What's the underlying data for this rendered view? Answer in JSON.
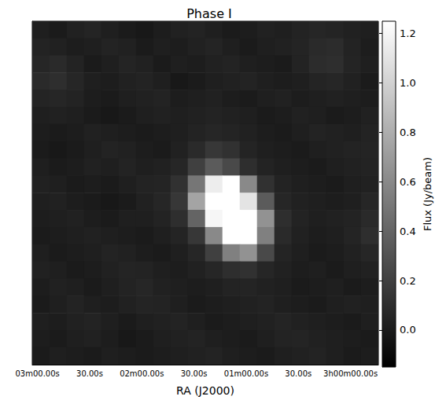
{
  "chart_data": {
    "type": "heatmap",
    "title": "Phase I",
    "x_label": "RA (J2000)",
    "xlim": [
      183,
      -16
    ],
    "xticks": [
      {
        "value": 180,
        "label": "03m00.00s"
      },
      {
        "value": 150,
        "label": "30.00s"
      },
      {
        "value": 120,
        "label": "02m00.00s"
      },
      {
        "value": 90,
        "label": "30.00s"
      },
      {
        "value": 60,
        "label": "01m00.00s"
      },
      {
        "value": 30,
        "label": "30.00s"
      },
      {
        "value": 0,
        "label": "3h00m00.00s"
      }
    ],
    "ylim": [
      0,
      20
    ],
    "yticks": [
      2,
      4,
      6,
      8,
      10,
      12,
      14,
      16,
      18
    ],
    "tick_labels": "x",
    "grid": false,
    "cells": [
      [
        0.02,
        0.0,
        0.03,
        0.05,
        0.02,
        0.0,
        -0.02,
        0.01,
        0.03,
        0.04,
        0.02,
        0.0,
        0.01,
        0.03,
        0.02,
        0.04,
        0.06,
        0.05,
        0.03,
        0.02
      ],
      [
        0.04,
        0.03,
        0.01,
        0.02,
        0.04,
        0.03,
        0.0,
        0.02,
        0.01,
        0.03,
        0.05,
        0.02,
        0.0,
        0.02,
        0.03,
        0.05,
        0.08,
        0.09,
        0.04,
        0.01
      ],
      [
        0.06,
        0.08,
        0.04,
        0.0,
        0.02,
        0.05,
        0.03,
        0.0,
        0.02,
        0.01,
        0.03,
        0.04,
        0.02,
        0.01,
        0.0,
        0.04,
        0.09,
        0.1,
        0.05,
        0.02
      ],
      [
        0.08,
        0.1,
        0.06,
        0.02,
        0.01,
        0.03,
        0.04,
        0.02,
        -0.02,
        0.0,
        0.02,
        0.03,
        0.04,
        0.02,
        0.01,
        0.02,
        0.05,
        0.06,
        0.03,
        0.0
      ],
      [
        0.05,
        0.06,
        0.04,
        0.01,
        0.0,
        0.02,
        0.03,
        0.04,
        0.01,
        0.02,
        0.03,
        0.01,
        0.0,
        0.02,
        0.03,
        0.01,
        0.02,
        0.03,
        0.02,
        0.01
      ],
      [
        0.02,
        0.03,
        0.02,
        0.0,
        -0.02,
        0.0,
        0.02,
        0.03,
        0.02,
        0.03,
        0.04,
        0.03,
        0.02,
        0.0,
        0.01,
        0.03,
        0.02,
        0.0,
        0.01,
        0.03
      ],
      [
        0.01,
        0.0,
        0.01,
        0.03,
        0.02,
        0.01,
        0.0,
        0.01,
        0.02,
        0.04,
        0.06,
        0.05,
        0.03,
        0.01,
        0.0,
        0.02,
        0.04,
        0.03,
        0.02,
        0.04
      ],
      [
        0.0,
        -0.02,
        0.0,
        0.02,
        0.04,
        0.03,
        0.01,
        0.0,
        0.03,
        0.08,
        0.15,
        0.12,
        0.05,
        0.02,
        0.01,
        0.0,
        0.02,
        0.03,
        0.04,
        0.05
      ],
      [
        0.02,
        0.0,
        0.01,
        0.03,
        0.02,
        0.04,
        0.02,
        0.03,
        0.06,
        0.2,
        0.35,
        0.25,
        0.1,
        0.04,
        0.02,
        0.01,
        0.0,
        0.02,
        0.03,
        0.04
      ],
      [
        0.03,
        0.02,
        0.0,
        0.01,
        0.0,
        0.02,
        0.04,
        0.05,
        0.12,
        0.5,
        1.15,
        1.25,
        0.6,
        0.12,
        0.04,
        0.02,
        0.01,
        0.0,
        0.02,
        0.03
      ],
      [
        0.02,
        0.03,
        0.01,
        0.0,
        -0.02,
        0.0,
        0.03,
        0.06,
        0.15,
        0.75,
        1.25,
        1.25,
        1.1,
        0.35,
        0.06,
        0.03,
        0.02,
        0.01,
        0.02,
        0.06
      ],
      [
        0.01,
        0.02,
        0.03,
        0.01,
        0.0,
        0.02,
        0.02,
        0.04,
        0.1,
        0.4,
        1.2,
        1.25,
        1.25,
        0.65,
        0.1,
        0.04,
        0.02,
        0.03,
        0.04,
        0.08
      ],
      [
        0.0,
        0.01,
        0.02,
        0.03,
        0.02,
        0.01,
        0.0,
        0.02,
        0.05,
        0.15,
        0.6,
        1.25,
        1.25,
        0.55,
        0.08,
        0.03,
        0.01,
        0.02,
        0.05,
        0.1
      ],
      [
        0.02,
        0.0,
        0.01,
        0.02,
        0.04,
        0.03,
        0.01,
        0.0,
        0.02,
        0.06,
        0.2,
        0.55,
        0.65,
        0.25,
        0.05,
        0.02,
        0.0,
        0.01,
        0.03,
        0.06
      ],
      [
        0.03,
        0.02,
        0.0,
        0.01,
        0.03,
        0.05,
        0.04,
        0.02,
        0.01,
        0.03,
        0.06,
        0.1,
        0.12,
        0.06,
        0.03,
        0.01,
        0.02,
        0.0,
        0.02,
        0.03
      ],
      [
        0.01,
        0.03,
        0.02,
        0.0,
        0.02,
        0.04,
        0.06,
        0.03,
        0.02,
        0.01,
        0.02,
        0.04,
        0.05,
        0.03,
        0.02,
        0.0,
        0.01,
        0.02,
        0.0,
        0.01
      ],
      [
        0.0,
        0.02,
        0.04,
        0.02,
        0.01,
        0.03,
        0.05,
        0.04,
        0.02,
        0.0,
        0.01,
        0.02,
        0.03,
        0.04,
        0.02,
        0.01,
        0.0,
        0.02,
        0.03,
        0.02
      ],
      [
        0.02,
        0.01,
        0.03,
        0.04,
        0.02,
        0.0,
        0.02,
        0.03,
        0.04,
        0.02,
        0.0,
        0.01,
        0.02,
        0.03,
        0.05,
        0.03,
        0.02,
        0.01,
        0.0,
        0.02
      ],
      [
        0.01,
        0.0,
        0.02,
        0.03,
        0.01,
        -0.02,
        0.0,
        0.02,
        0.03,
        0.04,
        0.02,
        0.01,
        0.0,
        0.02,
        0.04,
        0.05,
        0.03,
        0.02,
        0.01,
        0.0
      ],
      [
        0.0,
        0.02,
        0.01,
        0.0,
        0.02,
        0.01,
        0.0,
        0.01,
        0.02,
        0.03,
        0.04,
        0.02,
        0.01,
        0.0,
        0.02,
        0.03,
        0.04,
        0.02,
        0.0,
        0.01
      ]
    ],
    "colorbar": {
      "label": "Flux (Jy/beam)",
      "range": [
        -0.15,
        1.25
      ],
      "ticks": [
        {
          "value": 0,
          "label": "0.0"
        },
        0.2,
        0.4,
        0.6,
        0.8,
        {
          "value": 1,
          "label": "1.0"
        },
        1.2
      ]
    }
  }
}
